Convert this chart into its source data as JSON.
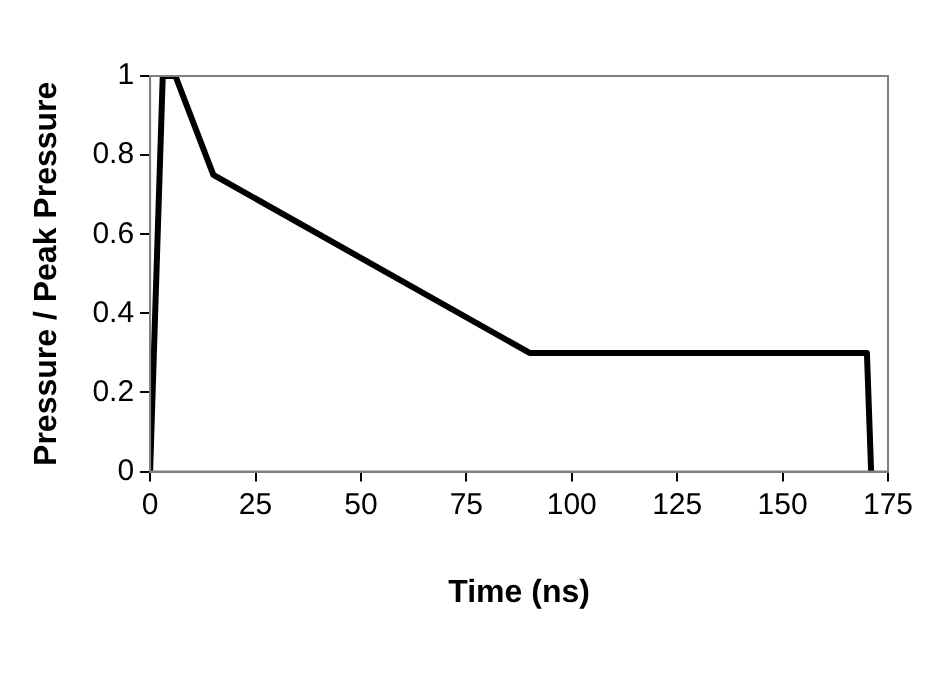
{
  "chart_data": {
    "type": "line",
    "xlabel": "Time (ns)",
    "ylabel": "Pressure / Peak Pressure",
    "x": [
      0,
      3,
      6,
      15,
      90,
      170,
      171
    ],
    "series": [
      {
        "color": "#000000",
        "values": [
          0,
          1,
          1,
          0.75,
          0.3,
          0.3,
          0
        ]
      }
    ],
    "xlim": [
      0,
      175
    ],
    "xticks": [
      0,
      25,
      50,
      75,
      100,
      125,
      150,
      175
    ],
    "ylim": [
      0,
      1
    ],
    "yticks": [
      0,
      0.2,
      0.4,
      0.6,
      0.8,
      1
    ],
    "grid": false,
    "legend": false,
    "marker": "none",
    "line_style": "solid"
  }
}
